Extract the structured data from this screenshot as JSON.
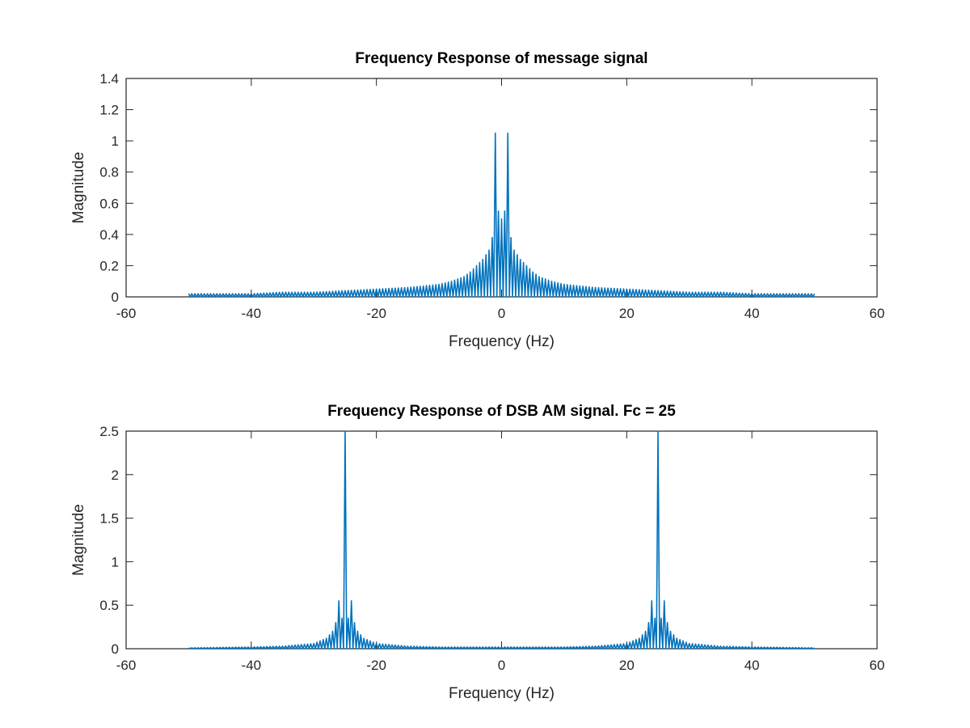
{
  "chart_data": [
    {
      "type": "line",
      "title": "Frequency Response of message signal",
      "xlabel": "Frequency (Hz)",
      "ylabel": "Magnitude",
      "xlim": [
        -60,
        60
      ],
      "ylim": [
        0,
        1.4
      ],
      "xticks": [
        -60,
        -40,
        -20,
        0,
        20,
        40,
        60
      ],
      "yticks": [
        0,
        0.2,
        0.4,
        0.6,
        0.8,
        1,
        1.2,
        1.4
      ],
      "xtick_labels": [
        "-60",
        "-40",
        "-20",
        "0",
        "20",
        "40",
        "60"
      ],
      "ytick_labels": [
        "0",
        "0.2",
        "0.4",
        "0.6",
        "0.8",
        "1",
        "1.2",
        "1.4"
      ],
      "grid": false,
      "legend": "none",
      "color": "#0072BD",
      "series": [
        {
          "x": [
            -50,
            -45,
            -40,
            -35,
            -30,
            -25,
            -20,
            -15,
            -10,
            -8,
            -6,
            -5,
            -4,
            -3,
            -2,
            -1.5,
            -1,
            -0.5,
            0,
            0.5,
            1,
            1.5,
            2,
            3,
            4,
            5,
            6,
            8,
            10,
            15,
            20,
            25,
            30,
            35,
            40,
            45,
            50
          ],
          "y": [
            0.02,
            0.02,
            0.02,
            0.03,
            0.03,
            0.04,
            0.05,
            0.06,
            0.08,
            0.1,
            0.13,
            0.16,
            0.2,
            0.24,
            0.3,
            0.38,
            1.05,
            0.55,
            0.5,
            0.55,
            1.05,
            0.38,
            0.3,
            0.24,
            0.2,
            0.16,
            0.13,
            0.1,
            0.08,
            0.06,
            0.05,
            0.04,
            0.03,
            0.03,
            0.02,
            0.02,
            0.02
          ]
        }
      ]
    },
    {
      "type": "line",
      "title": "Frequency Response of DSB AM signal. Fc = 25",
      "xlabel": "Frequency (Hz)",
      "ylabel": "Magnitude",
      "xlim": [
        -60,
        60
      ],
      "ylim": [
        0,
        2.5
      ],
      "xticks": [
        -60,
        -40,
        -20,
        0,
        20,
        40,
        60
      ],
      "yticks": [
        0,
        0.5,
        1,
        1.5,
        2,
        2.5
      ],
      "xtick_labels": [
        "-60",
        "-40",
        "-20",
        "0",
        "20",
        "40",
        "60"
      ],
      "ytick_labels": [
        "0",
        "0.5",
        "1",
        "1.5",
        "2",
        "2.5"
      ],
      "grid": false,
      "legend": "none",
      "color": "#0072BD",
      "series": [
        {
          "x": [
            -50,
            -40,
            -35,
            -30,
            -28,
            -27,
            -26.5,
            -26,
            -25.5,
            -25,
            -24.5,
            -24,
            -23.5,
            -23,
            -22,
            -20,
            -15,
            -10,
            -5,
            0,
            5,
            10,
            15,
            20,
            22,
            23,
            23.5,
            24,
            24.5,
            25,
            25.5,
            26,
            26.5,
            27,
            28,
            30,
            35,
            40,
            50
          ],
          "y": [
            0.01,
            0.02,
            0.03,
            0.06,
            0.12,
            0.2,
            0.3,
            0.55,
            0.35,
            2.5,
            0.35,
            0.55,
            0.3,
            0.2,
            0.12,
            0.06,
            0.03,
            0.02,
            0.02,
            0.02,
            0.02,
            0.02,
            0.03,
            0.06,
            0.12,
            0.2,
            0.3,
            0.55,
            0.35,
            2.5,
            0.35,
            0.55,
            0.3,
            0.2,
            0.12,
            0.06,
            0.03,
            0.02,
            0.01
          ]
        }
      ]
    }
  ]
}
